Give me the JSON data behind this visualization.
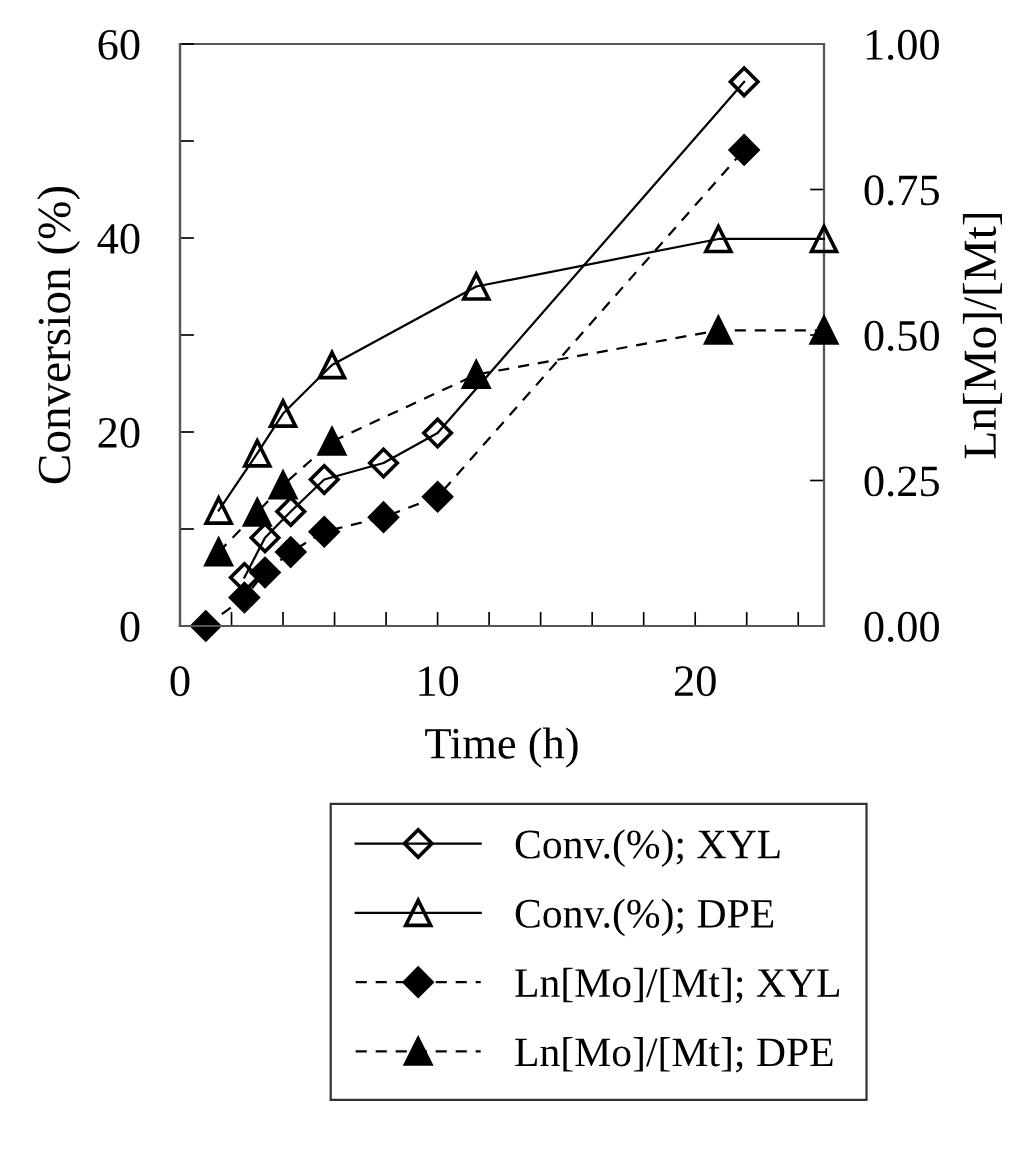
{
  "chart_data": {
    "type": "line",
    "xlabel": "Time (h)",
    "ylabel": "Conversion (%)",
    "y2label": "Ln[Mo]/[Mt]",
    "xlim": [
      0,
      25
    ],
    "xticks": [
      0,
      {
        "value": 2,
        "label": null
      },
      {
        "value": 4,
        "label": null
      },
      {
        "value": 6,
        "label": null
      },
      {
        "value": 8,
        "label": null
      },
      10,
      {
        "value": 12,
        "label": null
      },
      {
        "value": 14,
        "label": null
      },
      {
        "value": 16,
        "label": null
      },
      {
        "value": 18,
        "label": null
      },
      20,
      {
        "value": 22,
        "label": null
      },
      {
        "value": 24,
        "label": null
      }
    ],
    "ylim": [
      0,
      60
    ],
    "yticks": [
      0,
      {
        "value": 10,
        "label": null
      },
      20,
      {
        "value": 30,
        "label": null
      },
      40,
      {
        "value": 50,
        "label": null
      },
      60
    ],
    "y2lim": [
      0,
      1
    ],
    "y2ticks": [
      {
        "value": 0,
        "label": "0.00"
      },
      {
        "value": 0.25,
        "label": "0.25"
      },
      {
        "value": 0.5,
        "label": "0.50"
      },
      {
        "value": 0.75,
        "label": "0.75"
      },
      {
        "value": 1,
        "label": "1.00"
      }
    ],
    "grid": false,
    "legend": "bottom",
    "series": [
      {
        "name": "Conv.(%); XYL",
        "color": "#000000",
        "marker": "diamond",
        "line_style": "solid",
        "x": [
          2.5,
          3.3,
          4.3,
          5.6,
          7.9,
          10.0,
          21.9
        ],
        "values": [
          5.0,
          9.1,
          11.8,
          15.1,
          16.8,
          19.9,
          56.1
        ]
      },
      {
        "name": "Conv.(%); DPE",
        "color": "#000000",
        "marker": "triangle",
        "line_style": "solid",
        "x": [
          1.5,
          3.0,
          4.0,
          5.9,
          11.5,
          20.9,
          25
        ],
        "values": [
          11.9,
          17.8,
          21.9,
          26.9,
          35.0,
          39.9,
          39.9
        ]
      },
      {
        "name": "Ln[Mo]/[Mt]; XYL",
        "color": "#000000",
        "marker": "diamond",
        "line_style": "dashed",
        "axis": "y2",
        "x": [
          1.0,
          2.5,
          3.3,
          4.3,
          5.6,
          7.9,
          10.0,
          21.9
        ],
        "values": [
          0.0,
          0.049,
          0.092,
          0.127,
          0.162,
          0.187,
          0.222,
          0.818
        ]
      },
      {
        "name": "Ln[Mo]/[Mt]; DPE",
        "color": "#000000",
        "marker": "triangle",
        "line_style": "dashed",
        "axis": "y2",
        "x": [
          1.5,
          3.0,
          4.0,
          5.9,
          11.5,
          20.9,
          25
        ],
        "values": [
          0.127,
          0.195,
          0.242,
          0.317,
          0.432,
          0.508,
          0.508
        ]
      }
    ]
  }
}
